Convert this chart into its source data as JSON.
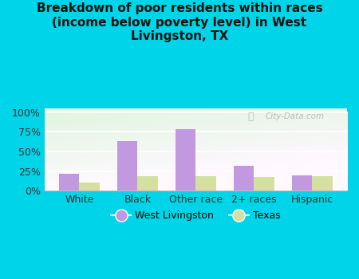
{
  "title": "Breakdown of poor residents within races\n(income below poverty level) in West\nLivingston, TX",
  "categories": [
    "White",
    "Black",
    "Other race",
    "2+ races",
    "Hispanic"
  ],
  "west_livingston": [
    22,
    63,
    78,
    32,
    20
  ],
  "texas": [
    10,
    19,
    19,
    17,
    19
  ],
  "wl_color": "#c299e0",
  "tx_color": "#d4e0a0",
  "bg_color": "#00d4e8",
  "yticks": [
    0,
    25,
    50,
    75,
    100
  ],
  "ylabels": [
    "0%",
    "25%",
    "50%",
    "75%",
    "100%"
  ],
  "bar_width": 0.35,
  "title_fontsize": 11,
  "tick_fontsize": 9,
  "legend_fontsize": 9,
  "watermark": "City-Data.com"
}
